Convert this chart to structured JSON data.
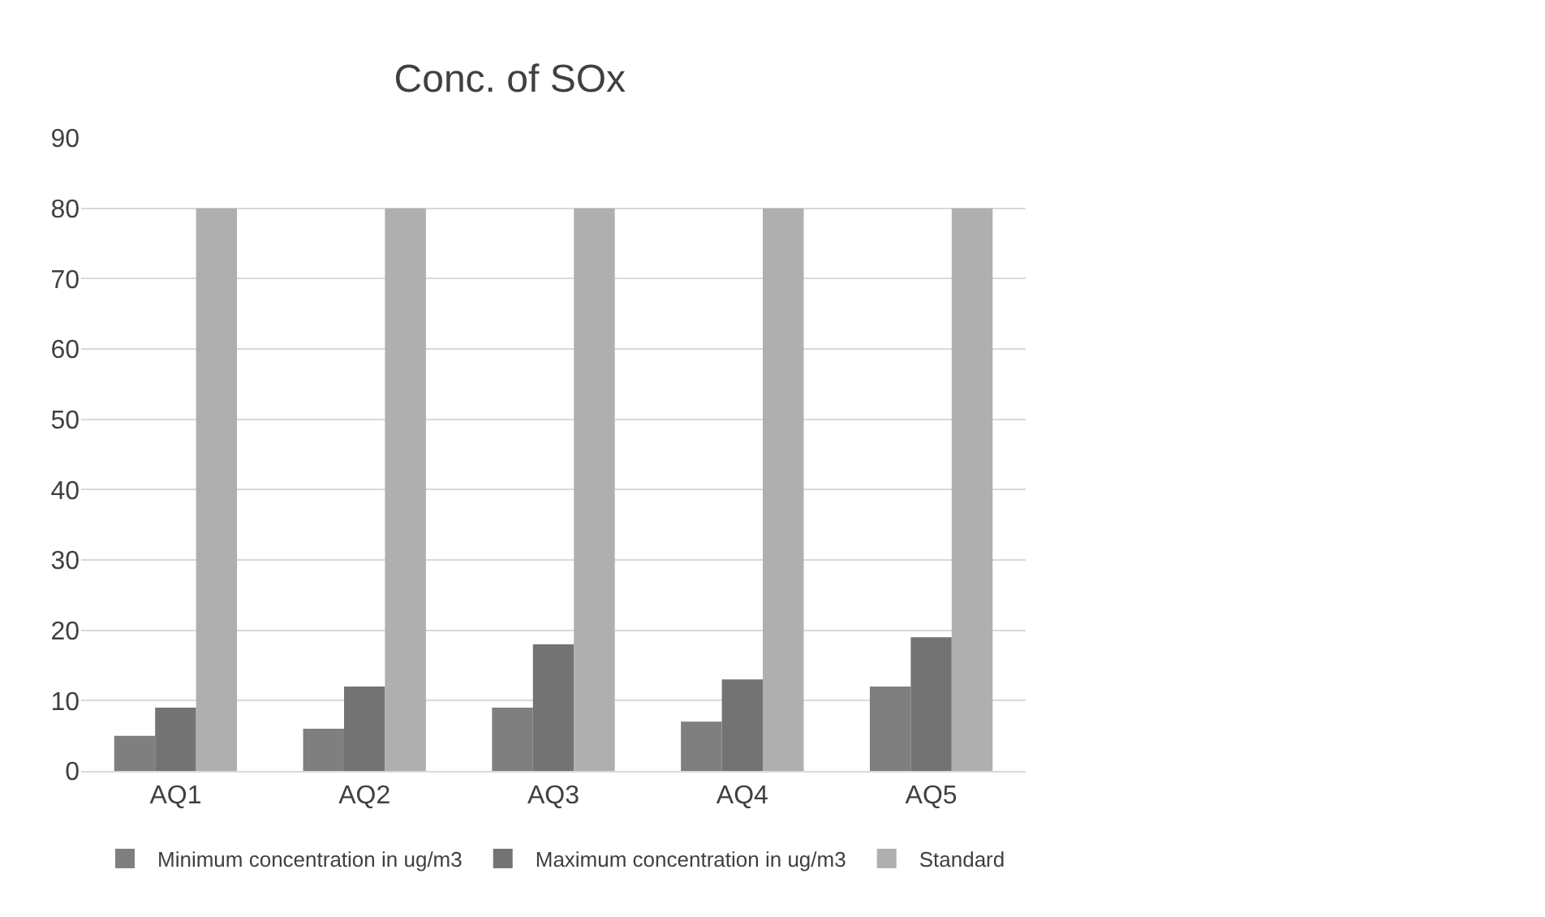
{
  "chart_data": {
    "type": "bar",
    "title": "Conc. of SOx",
    "categories": [
      "AQ1",
      "AQ2",
      "AQ3",
      "AQ4",
      "AQ5"
    ],
    "series": [
      {
        "name": "Minimum concentration in ug/m3",
        "color": "#7f7f7f",
        "values": [
          5,
          6,
          9,
          7,
          12
        ]
      },
      {
        "name": "Maximum concentration in ug/m3",
        "color": "#737373",
        "values": [
          9,
          12,
          18,
          13,
          19
        ]
      },
      {
        "name": "Standard",
        "color": "#afafaf",
        "values": [
          80,
          80,
          80,
          80,
          80
        ]
      }
    ],
    "ylim": [
      0,
      90
    ],
    "yticks": [
      0,
      10,
      20,
      30,
      40,
      50,
      60,
      70,
      80,
      90
    ],
    "grid": "y",
    "legend": "bottom"
  }
}
